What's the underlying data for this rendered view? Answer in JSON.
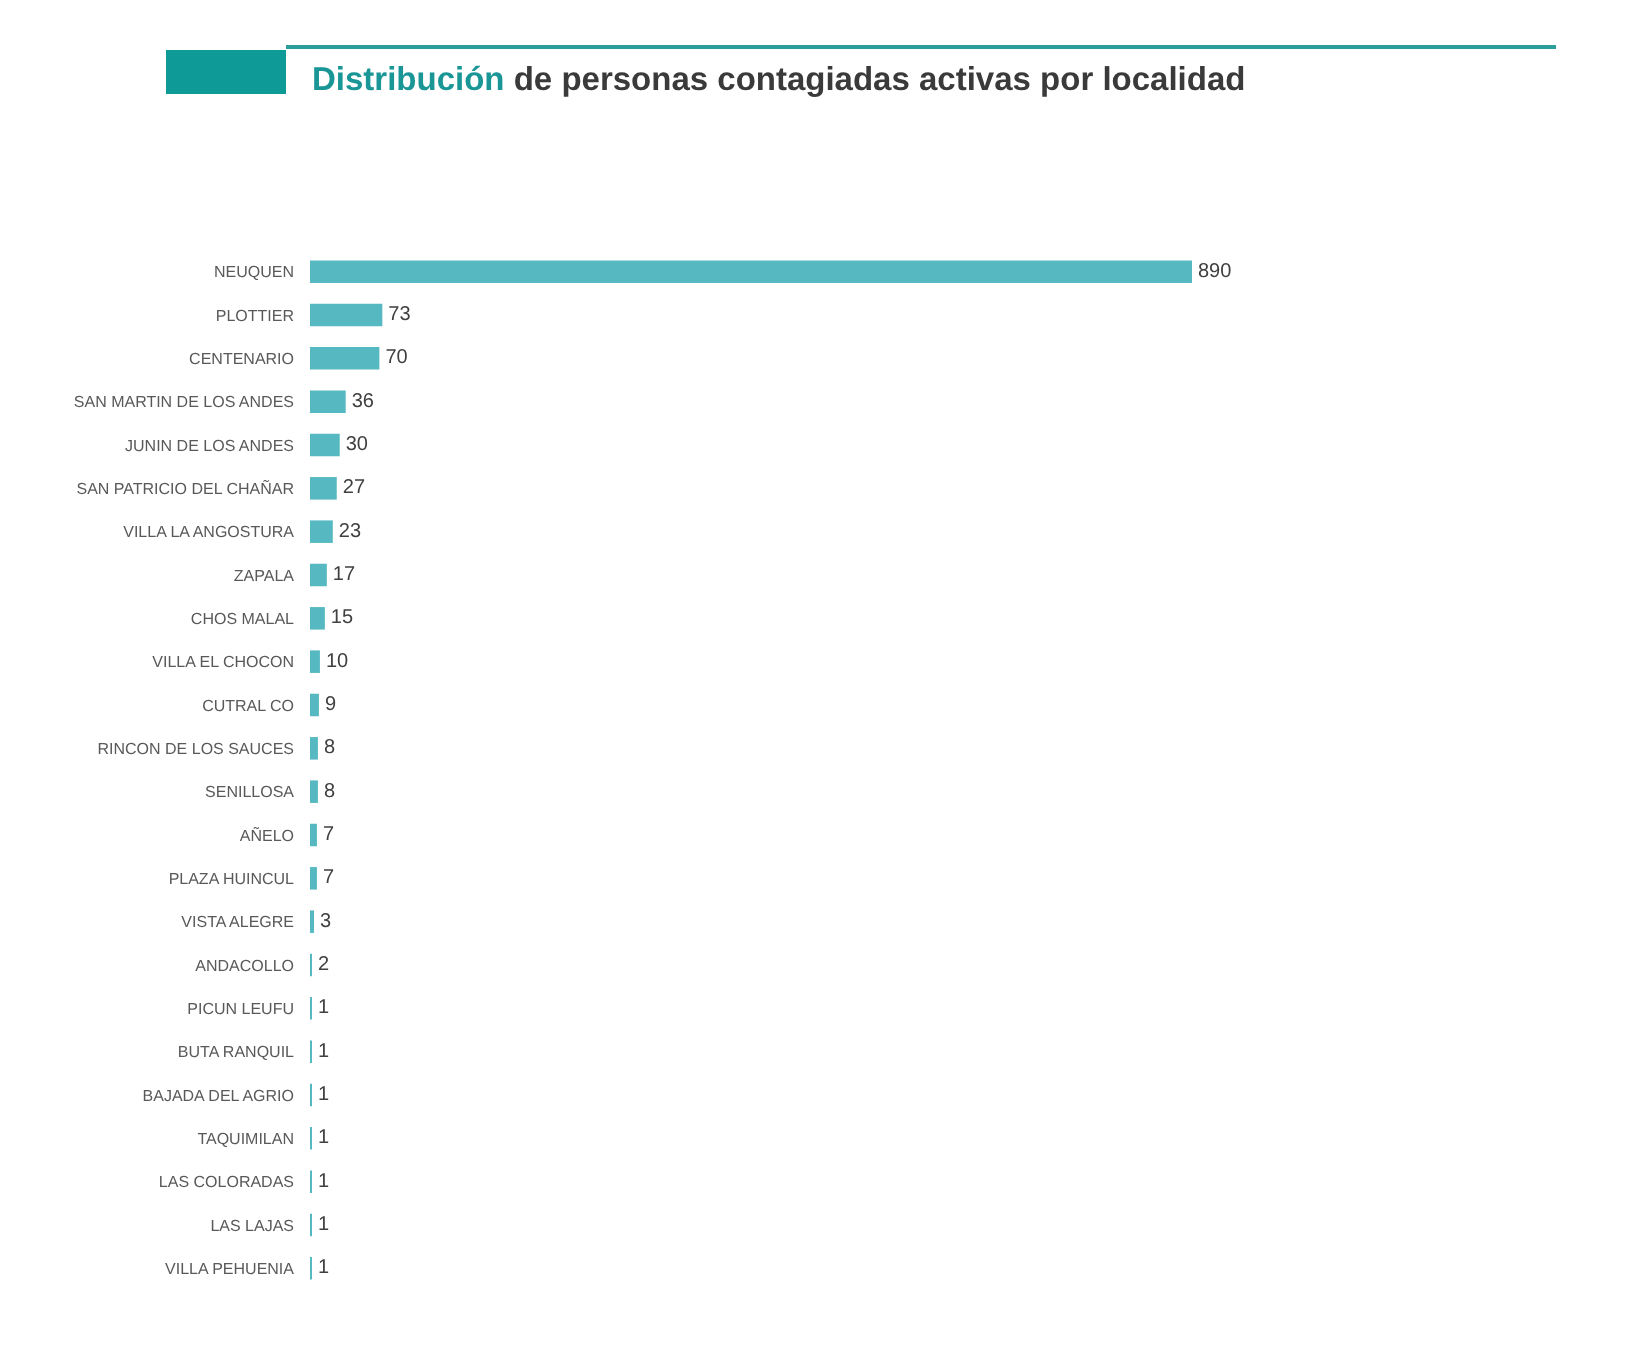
{
  "chart_data": {
    "type": "bar",
    "title": "Distribución de personas contagiadas activas por localidad",
    "orientation": "horizontal",
    "categories": [
      "NEUQUEN",
      "PLOTTIER",
      "CENTENARIO",
      "SAN MARTIN DE LOS ANDES",
      "JUNIN DE LOS ANDES",
      "SAN PATRICIO DEL CHAÑAR",
      "VILLA LA ANGOSTURA",
      "ZAPALA",
      "CHOS MALAL",
      "VILLA EL CHOCON",
      "CUTRAL CO",
      "RINCON DE LOS SAUCES",
      "SENILLOSA",
      "AÑELO",
      "PLAZA HUINCUL",
      "VISTA ALEGRE",
      "ANDACOLLO",
      "PICUN LEUFU",
      "BUTA RANQUIL",
      "BAJADA DEL AGRIO",
      "TAQUIMILAN",
      "LAS COLORADAS",
      "LAS LAJAS",
      "VILLA PEHUENIA"
    ],
    "values": [
      890,
      73,
      70,
      36,
      30,
      27,
      23,
      17,
      15,
      10,
      9,
      8,
      8,
      7,
      7,
      3,
      2,
      1,
      1,
      1,
      1,
      1,
      1,
      1
    ],
    "color": "#56b9c1",
    "data_labels": true,
    "tick_labels": "y"
  }
}
